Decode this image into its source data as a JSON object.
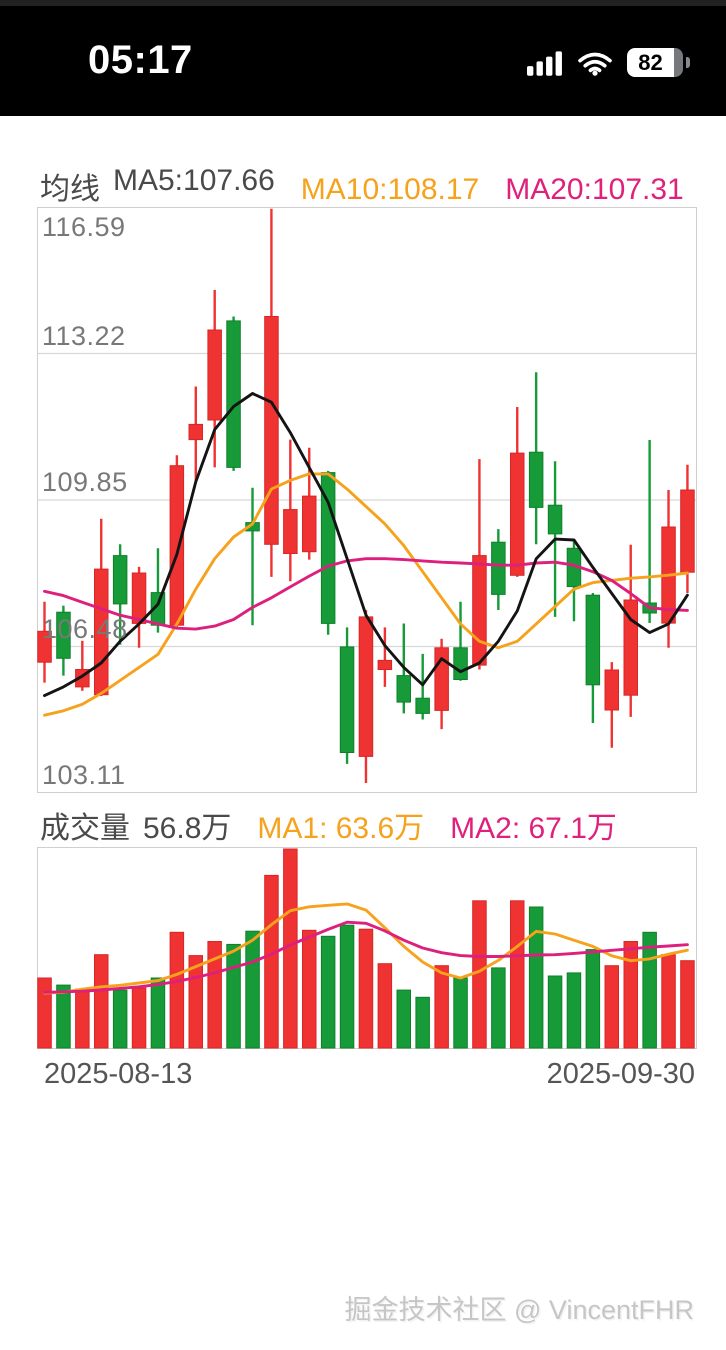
{
  "status_bar": {
    "time": "05:17",
    "battery_percent": "82"
  },
  "price_pane": {
    "title": "均线",
    "ma5_label": "MA5:107.66",
    "ma10_label": "MA10:108.17",
    "ma20_label": "MA20:107.31"
  },
  "volume_pane": {
    "title": "成交量",
    "current_label": "56.8万",
    "ma1_label": "MA1: 63.6万",
    "ma2_label": "MA2: 67.1万"
  },
  "x_axis": {
    "start_date": "2025-08-13",
    "end_date": "2025-09-30"
  },
  "watermark": "掘金技术社区 @ VincentFHR",
  "colors": {
    "up_fill": "#ef3232",
    "up_stroke": "#d92525",
    "down_fill": "#169b38",
    "down_stroke": "#0f7f2c",
    "ma5": "#141414",
    "ma10": "#f6a21d",
    "ma20": "#dd1f7e",
    "grid": "#d8d8d8",
    "border": "#cfcfcf",
    "legend_gray": "#4a4a4a",
    "tick_gray": "#787878",
    "orange_text": "#f6a21d",
    "magenta_text": "#e0217c"
  },
  "chart_data": [
    {
      "type": "candlestick",
      "title": "均线",
      "legend": [
        "MA5:107.66",
        "MA10:108.17",
        "MA20:107.31"
      ],
      "y_ticks": [
        116.59,
        113.22,
        109.85,
        106.48,
        103.11
      ],
      "ylim": [
        103.11,
        116.59
      ],
      "x_start": "2025-08-13",
      "x_end": "2025-09-30",
      "up_color_convention": "red = close above open (CN market style)",
      "ohlc_order": [
        "open",
        "high",
        "low",
        "close"
      ],
      "candles_ohlc": [
        [
          106.12,
          107.51,
          105.65,
          106.83
        ],
        [
          107.27,
          107.42,
          105.81,
          106.21
        ],
        [
          105.55,
          106.61,
          105.46,
          105.95
        ],
        [
          105.37,
          109.42,
          105.34,
          108.26
        ],
        [
          108.57,
          108.83,
          106.52,
          107.46
        ],
        [
          107.01,
          108.31,
          106.45,
          108.17
        ],
        [
          107.72,
          108.74,
          106.8,
          106.97
        ],
        [
          106.97,
          110.88,
          106.92,
          110.64
        ],
        [
          111.24,
          112.46,
          110.25,
          111.59
        ],
        [
          111.69,
          114.68,
          110.6,
          113.76
        ],
        [
          113.97,
          114.07,
          110.52,
          110.6
        ],
        [
          109.33,
          110.13,
          106.97,
          109.14
        ],
        [
          108.83,
          116.55,
          108.08,
          114.07
        ],
        [
          108.62,
          111.24,
          107.98,
          109.63
        ],
        [
          108.66,
          111.05,
          108.48,
          109.94
        ],
        [
          110.48,
          110.52,
          106.75,
          107.01
        ],
        [
          106.47,
          106.92,
          103.78,
          104.04
        ],
        [
          103.95,
          107.32,
          103.34,
          107.16
        ],
        [
          105.95,
          106.92,
          105.55,
          106.16
        ],
        [
          105.81,
          107.01,
          104.94,
          105.2
        ],
        [
          105.29,
          106.31,
          104.8,
          104.94
        ],
        [
          105.01,
          106.66,
          104.58,
          106.45
        ],
        [
          106.45,
          107.51,
          105.69,
          105.72
        ],
        [
          106.05,
          110.79,
          105.95,
          108.57
        ],
        [
          108.88,
          109.18,
          107.32,
          107.68
        ],
        [
          108.12,
          111.99,
          108.08,
          110.93
        ],
        [
          110.95,
          112.79,
          108.83,
          109.68
        ],
        [
          109.73,
          110.74,
          107.16,
          109.07
        ],
        [
          108.74,
          108.92,
          107.06,
          107.86
        ],
        [
          107.66,
          107.71,
          104.72,
          105.6
        ],
        [
          105.02,
          106.12,
          104.15,
          105.94
        ],
        [
          105.36,
          108.82,
          104.86,
          107.55
        ],
        [
          107.48,
          111.23,
          107.02,
          107.25
        ],
        [
          107.02,
          110.08,
          106.45,
          109.23
        ],
        [
          108.19,
          110.66,
          107.71,
          110.08
        ]
      ],
      "series": [
        {
          "name": "MA5",
          "color_key": "ma5",
          "last_label": "107.66",
          "values": [
            105.35,
            105.55,
            105.8,
            106.1,
            106.6,
            107.0,
            107.45,
            108.6,
            110.27,
            111.47,
            112.0,
            112.3,
            112.1,
            111.4,
            110.6,
            109.8,
            108.5,
            107.2,
            106.5,
            106.0,
            105.6,
            106.2,
            105.9,
            106.1,
            106.6,
            107.3,
            108.5,
            108.95,
            108.93,
            108.3,
            107.7,
            107.1,
            106.8,
            107.0,
            107.66
          ]
        },
        {
          "name": "MA10",
          "color_key": "ma10",
          "last_label": "108.17",
          "values": [
            104.9,
            105.0,
            105.15,
            105.4,
            105.7,
            106.0,
            106.3,
            107.0,
            107.8,
            108.5,
            109.0,
            109.3,
            110.1,
            110.3,
            110.45,
            110.45,
            110.1,
            109.7,
            109.3,
            108.8,
            108.2,
            107.6,
            107.0,
            106.6,
            106.45,
            106.6,
            107.0,
            107.4,
            107.8,
            107.95,
            108.0,
            108.05,
            108.08,
            108.12,
            108.17
          ]
        },
        {
          "name": "MA20",
          "color_key": "ma20",
          "last_label": "107.31",
          "values": [
            107.75,
            107.65,
            107.5,
            107.35,
            107.2,
            107.1,
            107.0,
            106.9,
            106.88,
            106.95,
            107.1,
            107.38,
            107.6,
            107.85,
            108.1,
            108.33,
            108.45,
            108.5,
            108.5,
            108.48,
            108.45,
            108.42,
            108.4,
            108.38,
            108.35,
            108.35,
            108.4,
            108.42,
            108.35,
            108.2,
            108.0,
            107.7,
            107.37,
            107.33,
            107.31
          ]
        }
      ]
    },
    {
      "type": "bar",
      "title": "成交量",
      "unit": "万",
      "current_value": 56.8,
      "ylim": [
        0,
        130
      ],
      "values": [
        45.7,
        41.1,
        38.5,
        60.7,
        37.9,
        39.2,
        45.7,
        75.1,
        60.1,
        69.2,
        67.3,
        75.8,
        111.7,
        128.7,
        76.4,
        72.5,
        79.7,
        77.1,
        54.9,
        37.9,
        33.3,
        53.6,
        45.7,
        95.4,
        52.2,
        95.4,
        91.4,
        47.0,
        49.0,
        64.0,
        53.6,
        69.2,
        75.1,
        60.7,
        56.8
      ],
      "series": [
        {
          "name": "MA1",
          "color_key": "ma10",
          "last_label": "63.6万",
          "values": [
            36,
            36.5,
            38.5,
            40,
            41,
            42.5,
            44,
            48,
            53,
            58,
            63,
            70,
            80,
            89,
            91.5,
            92.5,
            93.4,
            89.4,
            78,
            66,
            56,
            49,
            45.7,
            50,
            57,
            66,
            75.7,
            74,
            70,
            66,
            60,
            56.8,
            58,
            61,
            63.6
          ]
        },
        {
          "name": "MA2",
          "color_key": "ma20",
          "last_label": "67.1万",
          "values": [
            36.5,
            36.8,
            37.2,
            38,
            39,
            40,
            41.5,
            43.5,
            46,
            49,
            52.5,
            56,
            61,
            67,
            72,
            77,
            81.6,
            80.9,
            76,
            70,
            65,
            62,
            60.1,
            59.5,
            59.5,
            60,
            60.5,
            60.7,
            61.5,
            62.5,
            63.5,
            64.5,
            65.5,
            66.3,
            67.1
          ]
        }
      ]
    }
  ]
}
